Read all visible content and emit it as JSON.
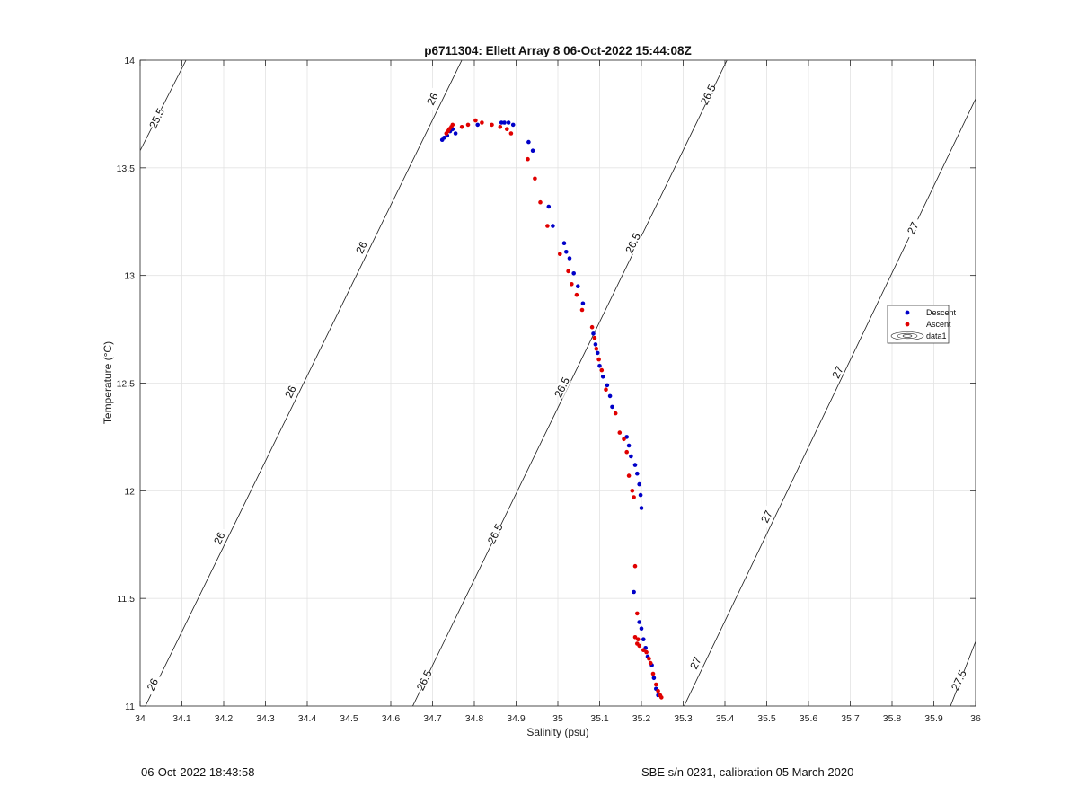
{
  "chart_data": {
    "type": "scatter",
    "title": "p6711304: Ellett Array 8 06-Oct-2022 15:44:08Z",
    "xlabel": "Salinity (psu)",
    "ylabel": "Temperature (°C)",
    "xlim": [
      34,
      36
    ],
    "ylim": [
      11,
      14
    ],
    "xticks": [
      "34",
      "34.1",
      "34.2",
      "34.3",
      "34.4",
      "34.5",
      "34.6",
      "34.7",
      "34.8",
      "34.9",
      "35",
      "35.1",
      "35.2",
      "35.3",
      "35.4",
      "35.5",
      "35.6",
      "35.7",
      "35.8",
      "35.9",
      "36"
    ],
    "yticks": [
      "11",
      "11.5",
      "12",
      "12.5",
      "13",
      "13.5",
      "14"
    ],
    "grid": true,
    "legend_position": "right",
    "legend": [
      "Descent",
      "Ascent",
      "data1"
    ],
    "series": [
      {
        "name": "Descent",
        "color": "#0000c8",
        "x": [
          34.723,
          34.728,
          34.735,
          34.742,
          34.748,
          34.755,
          34.808,
          34.865,
          34.872,
          34.882,
          34.893,
          34.93,
          34.94,
          34.978,
          34.988,
          35.015,
          35.02,
          35.028,
          35.038,
          35.048,
          35.06,
          35.085,
          35.09,
          35.095,
          35.1,
          35.108,
          35.118,
          35.125,
          35.13,
          35.165,
          35.17,
          35.175,
          35.185,
          35.19,
          35.195,
          35.198,
          35.2,
          35.182,
          35.195,
          35.2,
          35.205,
          35.21,
          35.215,
          35.225,
          35.23,
          35.235,
          35.24
        ],
        "y": [
          13.63,
          13.64,
          13.65,
          13.67,
          13.68,
          13.66,
          13.7,
          13.71,
          13.71,
          13.71,
          13.7,
          13.62,
          13.58,
          13.32,
          13.23,
          13.15,
          13.11,
          13.08,
          13.01,
          12.95,
          12.87,
          12.73,
          12.68,
          12.64,
          12.58,
          12.53,
          12.49,
          12.44,
          12.39,
          12.25,
          12.21,
          12.16,
          12.12,
          12.08,
          12.03,
          11.98,
          11.92,
          11.53,
          11.39,
          11.36,
          11.31,
          11.27,
          11.23,
          11.19,
          11.13,
          11.08,
          11.05
        ]
      },
      {
        "name": "Ascent",
        "color": "#e00000",
        "x": [
          34.733,
          34.737,
          34.74,
          34.745,
          34.748,
          34.77,
          34.785,
          34.803,
          34.818,
          34.842,
          34.862,
          34.878,
          34.888,
          34.928,
          34.945,
          34.958,
          34.975,
          35.005,
          35.025,
          35.033,
          35.045,
          35.058,
          35.082,
          35.088,
          35.092,
          35.098,
          35.105,
          35.115,
          35.138,
          35.148,
          35.158,
          35.165,
          35.17,
          35.178,
          35.182,
          35.185,
          35.19,
          35.185,
          35.19,
          35.192,
          35.195,
          35.205,
          35.212,
          35.218,
          35.222,
          35.228,
          35.235,
          35.24,
          35.245,
          35.248
        ],
        "y": [
          13.66,
          13.67,
          13.68,
          13.69,
          13.7,
          13.69,
          13.7,
          13.72,
          13.71,
          13.7,
          13.69,
          13.68,
          13.66,
          13.54,
          13.45,
          13.34,
          13.23,
          13.1,
          13.02,
          12.96,
          12.91,
          12.84,
          12.76,
          12.71,
          12.66,
          12.61,
          12.56,
          12.47,
          12.36,
          12.27,
          12.24,
          12.18,
          12.07,
          12.0,
          11.97,
          11.65,
          11.43,
          11.32,
          11.29,
          11.31,
          11.28,
          11.26,
          11.25,
          11.22,
          11.2,
          11.15,
          11.1,
          11.07,
          11.05,
          11.04
        ]
      }
    ],
    "contours": [
      {
        "label": "25.5",
        "points": [
          [
            34.0,
            13.58
          ],
          [
            34.11,
            14.0
          ]
        ]
      },
      {
        "label": "26",
        "points": [
          [
            34.0,
            10.95
          ],
          [
            34.77,
            14.0
          ]
        ]
      },
      {
        "label": "26.5",
        "points": [
          [
            34.64,
            10.95
          ],
          [
            35.405,
            14.0
          ]
        ]
      },
      {
        "label": "27",
        "points": [
          [
            35.29,
            10.95
          ],
          [
            36.0,
            13.82
          ]
        ]
      },
      {
        "label": "27.5",
        "points": [
          [
            35.93,
            10.95
          ],
          [
            36.0,
            11.3
          ]
        ]
      }
    ],
    "contour_labels": [
      {
        "text": "25.5",
        "x": 34.04,
        "y": 13.73
      },
      {
        "text": "26",
        "x": 34.7,
        "y": 13.82
      },
      {
        "text": "26",
        "x": 34.53,
        "y": 13.13
      },
      {
        "text": "26",
        "x": 34.36,
        "y": 12.46
      },
      {
        "text": "26",
        "x": 34.19,
        "y": 11.78
      },
      {
        "text": "26",
        "x": 34.03,
        "y": 11.1
      },
      {
        "text": "26.5",
        "x": 35.36,
        "y": 13.84
      },
      {
        "text": "26.5",
        "x": 35.18,
        "y": 13.15
      },
      {
        "text": "26.5",
        "x": 35.01,
        "y": 12.48
      },
      {
        "text": "26.5",
        "x": 34.85,
        "y": 11.8
      },
      {
        "text": "26.5",
        "x": 34.68,
        "y": 11.12
      },
      {
        "text": "27",
        "x": 35.85,
        "y": 13.22
      },
      {
        "text": "27",
        "x": 35.67,
        "y": 12.55
      },
      {
        "text": "27",
        "x": 35.5,
        "y": 11.88
      },
      {
        "text": "27",
        "x": 35.33,
        "y": 11.2
      },
      {
        "text": "27.5",
        "x": 35.96,
        "y": 11.12
      }
    ]
  },
  "footer": {
    "left": "06-Oct-2022 18:43:58",
    "right": "SBE s/n 0231, calibration 05 March 2020"
  }
}
